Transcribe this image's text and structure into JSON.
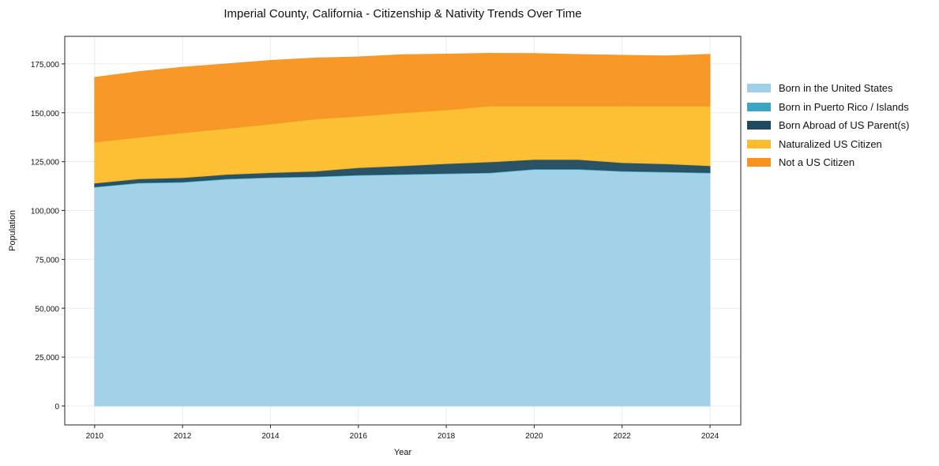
{
  "chart_data": {
    "type": "area",
    "stacked": true,
    "title": "Imperial County, California - Citizenship & Nativity Trends Over Time",
    "xlabel": "Year",
    "ylabel": "Population",
    "xlim": [
      2009.32,
      2024.7
    ],
    "ylim": [
      -9700,
      189100
    ],
    "x": [
      2010,
      2011,
      2012,
      2013,
      2014,
      2015,
      2016,
      2017,
      2018,
      2019,
      2020,
      2021,
      2022,
      2023,
      2024
    ],
    "xticks": [
      2010,
      2012,
      2014,
      2016,
      2018,
      2020,
      2022,
      2024
    ],
    "yticks": [
      0,
      25000,
      50000,
      75000,
      100000,
      125000,
      150000,
      175000
    ],
    "ytick_labels": [
      "0",
      "25,000",
      "50,000",
      "75,000",
      "100,000",
      "125,000",
      "150,000",
      "175,000"
    ],
    "grid": true,
    "legend_position": "right",
    "series": [
      {
        "name": "Born in the United States",
        "color": "#9fd0e7",
        "values": [
          111900,
          114000,
          114400,
          116000,
          116800,
          117200,
          118000,
          118400,
          118800,
          119200,
          121000,
          121000,
          120000,
          119600,
          119200
        ]
      },
      {
        "name": "Born in Puerto Rico / Islands",
        "color": "#3aa6c4",
        "values": [
          300,
          300,
          300,
          300,
          300,
          300,
          300,
          300,
          300,
          300,
          300,
          300,
          300,
          300,
          300
        ]
      },
      {
        "name": "Born Abroad of US Parent(s)",
        "color": "#1f4a5e",
        "values": [
          1800,
          1900,
          2100,
          2200,
          2300,
          2600,
          3600,
          4200,
          4900,
          5400,
          4800,
          4800,
          4200,
          4000,
          3400
        ]
      },
      {
        "name": "Naturalized US Citizen",
        "color": "#fdbd2a",
        "values": [
          21000,
          21300,
          23000,
          23500,
          24900,
          26700,
          26400,
          27100,
          27500,
          28600,
          27400,
          27400,
          29000,
          29600,
          30600
        ]
      },
      {
        "name": "Not a US Citizen",
        "color": "#f7931e",
        "values": [
          33100,
          33500,
          33500,
          33000,
          32500,
          31200,
          30300,
          29700,
          28500,
          26900,
          26800,
          26300,
          25900,
          25600,
          26400
        ]
      }
    ]
  }
}
